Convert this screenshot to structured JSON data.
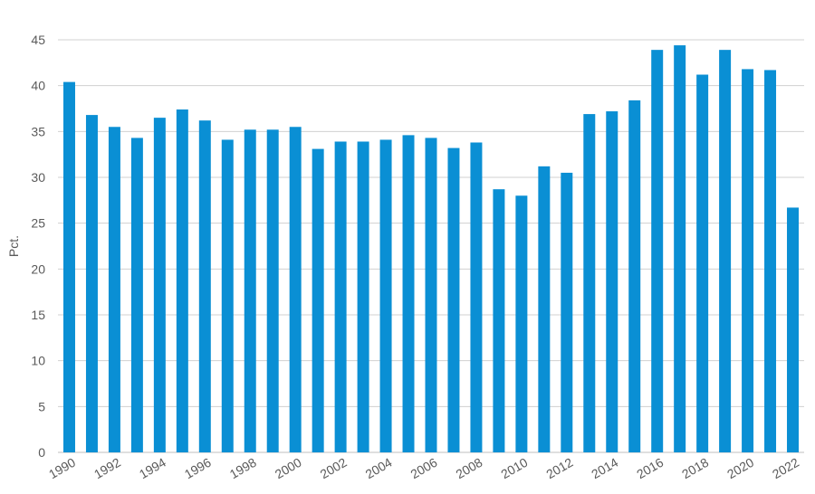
{
  "chart_data": {
    "type": "bar",
    "title": "",
    "xlabel": "",
    "ylabel": "Pct.",
    "ylim": [
      0,
      45
    ],
    "yticks": [
      0,
      5,
      10,
      15,
      20,
      25,
      30,
      35,
      40,
      45
    ],
    "grid": true,
    "bar_color": "#0a8fd4",
    "categories": [
      "1990",
      "1991",
      "1992",
      "1993",
      "1994",
      "1995",
      "1996",
      "1997",
      "1998",
      "1999",
      "2000",
      "2001",
      "2002",
      "2003",
      "2004",
      "2005",
      "2006",
      "2007",
      "2008",
      "2009",
      "2010",
      "2011",
      "2012",
      "2013",
      "2014",
      "2015",
      "2016",
      "2017",
      "2018",
      "2019",
      "2020",
      "2021",
      "2022"
    ],
    "x_tick_labels": [
      "1990",
      "",
      "1992",
      "",
      "1994",
      "",
      "1996",
      "",
      "1998",
      "",
      "2000",
      "",
      "2002",
      "",
      "2004",
      "",
      "2006",
      "",
      "2008",
      "",
      "2010",
      "",
      "2012",
      "",
      "2014",
      "",
      "2016",
      "",
      "2018",
      "",
      "2020",
      "",
      "2022"
    ],
    "values": [
      40.4,
      36.8,
      35.5,
      34.3,
      36.5,
      37.4,
      36.2,
      34.1,
      35.2,
      35.2,
      35.5,
      33.1,
      33.9,
      33.9,
      34.1,
      34.6,
      34.3,
      33.2,
      33.8,
      28.7,
      28.0,
      31.2,
      30.5,
      36.9,
      37.2,
      38.4,
      43.9,
      44.4,
      41.2,
      43.9,
      41.8,
      41.7,
      26.7
    ]
  }
}
